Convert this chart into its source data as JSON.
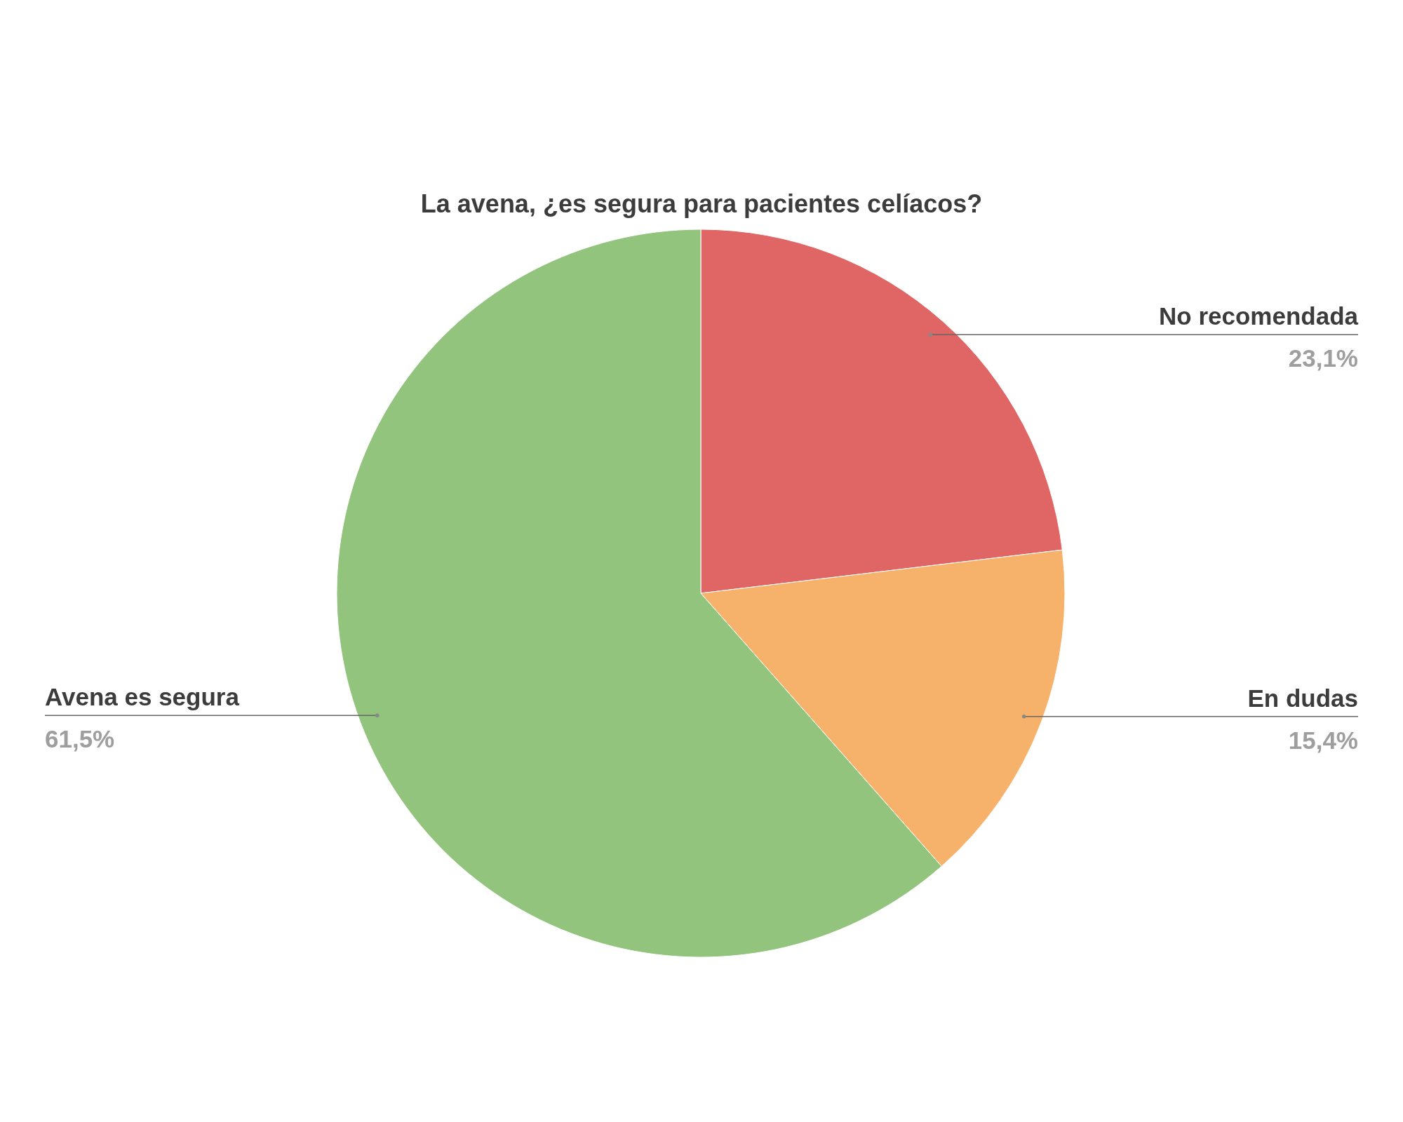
{
  "chart_data": {
    "type": "pie",
    "title": "La avena, ¿es segura para pacientes celíacos?",
    "categories": [
      "No recomendada",
      "En dudas",
      "Avena es segura"
    ],
    "values": [
      23.1,
      15.4,
      61.5
    ],
    "colors": [
      "#e06666",
      "#f6b26b",
      "#93c47d"
    ],
    "value_labels": [
      "23,1%",
      "15,4%",
      "61,5%"
    ]
  }
}
